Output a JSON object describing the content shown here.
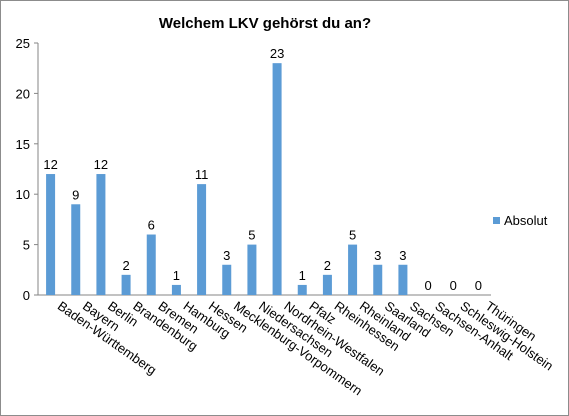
{
  "chart_data": {
    "type": "bar",
    "title": "Welchem LKV gehörst du an?",
    "xlabel": "",
    "ylabel": "",
    "ylim": [
      0,
      25
    ],
    "yticks": [
      0,
      5,
      10,
      15,
      20,
      25
    ],
    "grid": false,
    "legend_position": "right",
    "categories": [
      "Baden-Württemberg",
      "Bayern",
      "Berlin",
      "Brandenburg",
      "Bremen",
      "Hamburg",
      "Hessen",
      "Mecklenburg-Vorpommern",
      "Niedersachsen",
      "Nordrhein-Westfalen",
      "Pfalz",
      "Rheinhessen",
      "Rheinland",
      "Saarland",
      "Sachsen",
      "Sachsen-Anhalt",
      "Schleswig-Holstein",
      "Thüringen"
    ],
    "series": [
      {
        "name": "Absolut",
        "color": "#5B9BD5",
        "values": [
          12,
          9,
          12,
          2,
          6,
          1,
          11,
          3,
          5,
          23,
          1,
          2,
          5,
          3,
          3,
          0,
          0,
          0
        ]
      }
    ]
  }
}
